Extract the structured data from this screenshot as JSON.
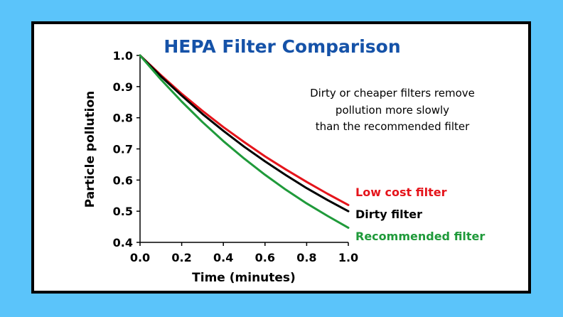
{
  "colors": {
    "background": "#5bc4fa",
    "title": "#1552a8",
    "low_cost": "#e5141b",
    "dirty": "#000000",
    "recommended": "#1f9a3a"
  },
  "chart_data": {
    "type": "line",
    "title": "HEPA Filter Comparison",
    "xlabel": "Time (minutes)",
    "ylabel": "Particle pollution",
    "xlim": [
      0.0,
      1.0
    ],
    "ylim": [
      0.4,
      1.0
    ],
    "x_ticks": [
      "0.0",
      "0.2",
      "0.4",
      "0.6",
      "0.8",
      "1.0"
    ],
    "y_ticks": [
      "0.4",
      "0.5",
      "0.6",
      "0.7",
      "0.8",
      "0.9",
      "1.0"
    ],
    "grid": false,
    "annotation": [
      "Dirty or cheaper filters remove",
      "pollution more slowly",
      "than the recommended filter"
    ],
    "x": [
      0.0,
      0.1,
      0.2,
      0.3,
      0.4,
      0.5,
      0.6,
      0.7,
      0.8,
      0.9,
      1.0
    ],
    "series": [
      {
        "name": "Low cost filter",
        "color_key": "low_cost",
        "values": [
          1.0,
          0.937,
          0.877,
          0.822,
          0.77,
          0.722,
          0.676,
          0.634,
          0.594,
          0.556,
          0.52
        ]
      },
      {
        "name": "Dirty filter",
        "color_key": "dirty",
        "values": [
          1.0,
          0.933,
          0.871,
          0.812,
          0.758,
          0.707,
          0.66,
          0.616,
          0.574,
          0.536,
          0.5
        ]
      },
      {
        "name": "Recommended filter",
        "color_key": "recommended",
        "values": [
          1.0,
          0.923,
          0.852,
          0.786,
          0.725,
          0.669,
          0.617,
          0.569,
          0.525,
          0.485,
          0.447
        ]
      }
    ]
  }
}
